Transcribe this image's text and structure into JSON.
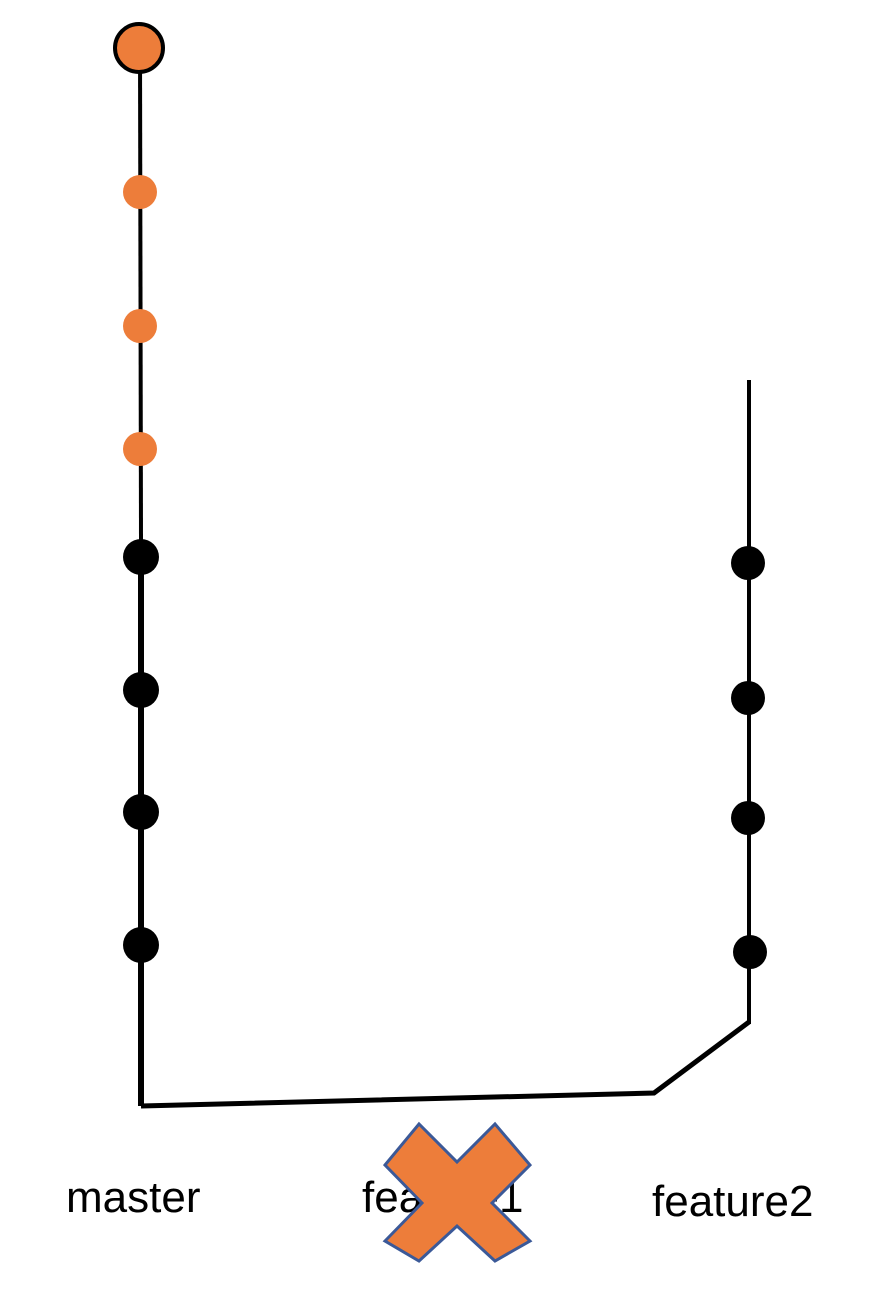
{
  "colors": {
    "background": "#ffffff",
    "line": "#000000",
    "commit": "#000000",
    "highlight": "#ED7D3A",
    "cross_outline": "#3B5998"
  },
  "branches": {
    "master": {
      "label": "master",
      "commits": 8,
      "highlighted_commits": 4
    },
    "feature1": {
      "label": "feature1",
      "deleted": true,
      "deleted_marker": "cross-icon"
    },
    "feature2": {
      "label": "feature2",
      "commits": 4
    }
  }
}
